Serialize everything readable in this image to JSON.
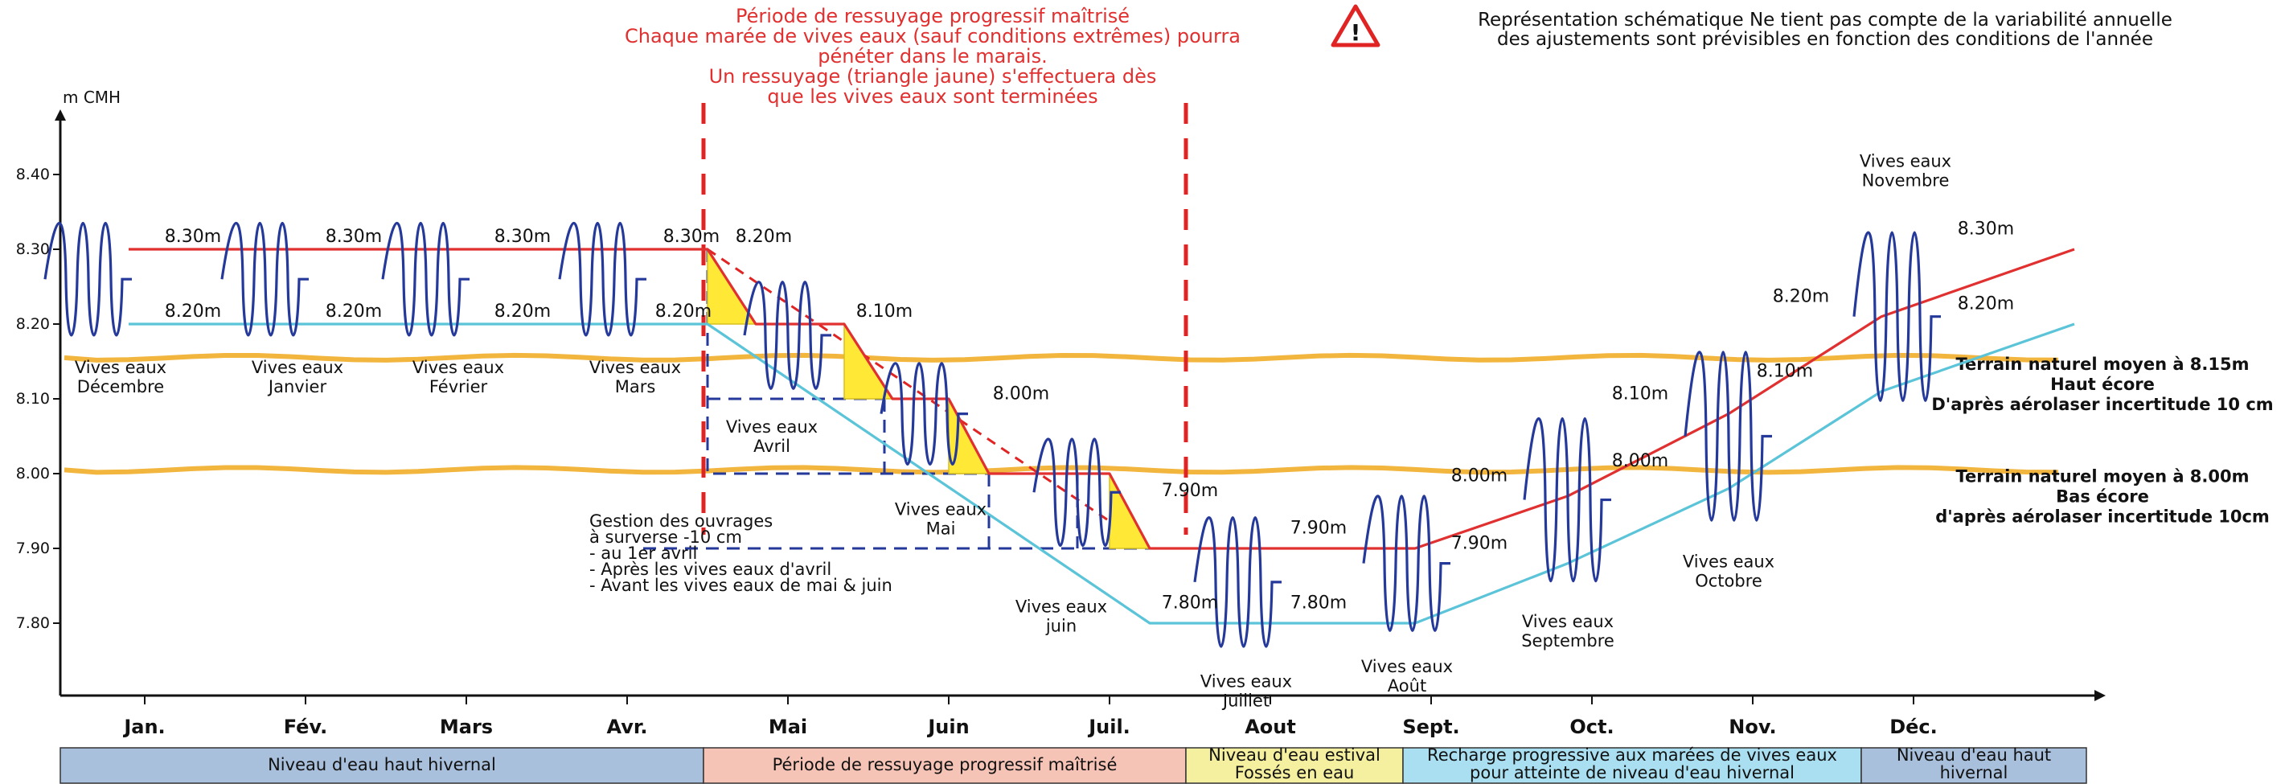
{
  "chart_data": {
    "type": "line",
    "ylabel": "m CMH",
    "ylim": [
      7.7,
      8.45
    ],
    "yticks": [
      7.8,
      7.9,
      8.0,
      8.1,
      8.2,
      8.3,
      8.4
    ],
    "ytick_labels": [
      "7.80",
      "7.90",
      "8.00",
      "8.10",
      "8.20",
      "8.30",
      "8.40"
    ],
    "months": [
      "Jan.",
      "Fév.",
      "Mars",
      "Avr.",
      "Mai",
      "Juin",
      "Juil.",
      "Aout",
      "Sept.",
      "Oct.",
      "Nov.",
      "Déc."
    ],
    "series": [
      {
        "name": "",
        "color": "#e03030",
        "points": [
          {
            "x": 0.4,
            "y": 8.3
          },
          {
            "x": 1.2,
            "y": 8.3
          },
          {
            "x": 2.2,
            "y": 8.3
          },
          {
            "x": 3.3,
            "y": 8.3
          },
          {
            "x": 4.0,
            "y": 8.3
          },
          {
            "x": 4.3,
            "y": 8.2
          },
          {
            "x": 4.85,
            "y": 8.2
          },
          {
            "x": 5.15,
            "y": 8.1
          },
          {
            "x": 5.5,
            "y": 8.1
          },
          {
            "x": 5.75,
            "y": 8.0
          },
          {
            "x": 6.5,
            "y": 8.0
          },
          {
            "x": 6.75,
            "y": 7.9
          },
          {
            "x": 7.3,
            "y": 7.9
          },
          {
            "x": 8.4,
            "y": 7.9
          },
          {
            "x": 9.35,
            "y": 7.97
          },
          {
            "x": 10.35,
            "y": 8.08
          },
          {
            "x": 11.3,
            "y": 8.21
          },
          {
            "x": 12.5,
            "y": 8.3
          }
        ]
      },
      {
        "name": "",
        "color": "#5bc4d8",
        "points": [
          {
            "x": 0.4,
            "y": 8.2
          },
          {
            "x": 1.2,
            "y": 8.2
          },
          {
            "x": 2.2,
            "y": 8.2
          },
          {
            "x": 3.3,
            "y": 8.2
          },
          {
            "x": 4.0,
            "y": 8.2
          },
          {
            "x": 6.75,
            "y": 7.8
          },
          {
            "x": 7.3,
            "y": 7.8
          },
          {
            "x": 8.4,
            "y": 7.8
          },
          {
            "x": 9.35,
            "y": 7.88
          },
          {
            "x": 10.35,
            "y": 7.98
          },
          {
            "x": 11.3,
            "y": 8.11
          },
          {
            "x": 12.5,
            "y": 8.2
          }
        ]
      }
    ],
    "level_labels": [
      {
        "text": "8.30m",
        "x": 0.8,
        "y": 8.3
      },
      {
        "text": "8.30m",
        "x": 1.8,
        "y": 8.3
      },
      {
        "text": "8.30m",
        "x": 2.85,
        "y": 8.3
      },
      {
        "text": "8.30m",
        "x": 3.9,
        "y": 8.3
      },
      {
        "text": "8.20m",
        "x": 0.8,
        "y": 8.2
      },
      {
        "text": "8.20m",
        "x": 1.8,
        "y": 8.2
      },
      {
        "text": "8.20m",
        "x": 2.85,
        "y": 8.2
      },
      {
        "text": "8.20m",
        "x": 3.85,
        "y": 8.2
      },
      {
        "text": "8.20m",
        "x": 4.35,
        "y": 8.3
      },
      {
        "text": "8.10m",
        "x": 5.1,
        "y": 8.2
      },
      {
        "text": "8.00m",
        "x": 5.95,
        "y": 8.09
      },
      {
        "text": "7.90m",
        "x": 7.0,
        "y": 7.96
      },
      {
        "text": "7.80m",
        "x": 7.0,
        "y": 7.81
      },
      {
        "text": "7.90m",
        "x": 7.8,
        "y": 7.91
      },
      {
        "text": "7.80m",
        "x": 7.8,
        "y": 7.81
      },
      {
        "text": "8.00m",
        "x": 8.8,
        "y": 7.98
      },
      {
        "text": "7.90m",
        "x": 8.8,
        "y": 7.89
      },
      {
        "text": "8.10m",
        "x": 9.8,
        "y": 8.09
      },
      {
        "text": "8.00m",
        "x": 9.8,
        "y": 8.0
      },
      {
        "text": "8.20m",
        "x": 10.8,
        "y": 8.22
      },
      {
        "text": "8.10m",
        "x": 10.7,
        "y": 8.12
      },
      {
        "text": "8.30m",
        "x": 11.95,
        "y": 8.31
      },
      {
        "text": "8.20m",
        "x": 11.95,
        "y": 8.21
      }
    ],
    "tides": [
      {
        "x": 0.15,
        "low": 8.16,
        "high": 8.36,
        "label": [
          "Vives eaux",
          "Décembre"
        ],
        "lx": 0.35,
        "ly": 8.14
      },
      {
        "x": 1.25,
        "low": 8.16,
        "high": 8.36,
        "label": [
          "Vives eaux",
          "Janvier"
        ],
        "lx": 1.45,
        "ly": 8.14
      },
      {
        "x": 2.25,
        "low": 8.16,
        "high": 8.36,
        "label": [
          "Vives eaux",
          "Février"
        ],
        "lx": 2.45,
        "ly": 8.14
      },
      {
        "x": 3.35,
        "low": 8.16,
        "high": 8.36,
        "label": [
          "Vives eaux",
          "Mars"
        ],
        "lx": 3.55,
        "ly": 8.14
      },
      {
        "x": 4.5,
        "low": 8.09,
        "high": 8.28,
        "label": [
          "Vives eaux",
          "Avril"
        ],
        "lx": 4.4,
        "ly": 8.06
      },
      {
        "x": 5.35,
        "low": 7.99,
        "high": 8.17,
        "label": [
          "Vives eaux",
          "Mai"
        ],
        "lx": 5.45,
        "ly": 7.95
      },
      {
        "x": 6.3,
        "low": 7.88,
        "high": 8.07,
        "label": [
          "Vives eaux",
          "juin"
        ],
        "lx": 6.2,
        "ly": 7.82
      },
      {
        "x": 7.3,
        "low": 7.74,
        "high": 7.97,
        "label": [
          "Vives eaux",
          "Juillet"
        ],
        "lx": 7.35,
        "ly": 7.72
      },
      {
        "x": 8.35,
        "low": 7.76,
        "high": 8.0,
        "label": [
          "Vives eaux",
          "Août"
        ],
        "lx": 8.35,
        "ly": 7.74
      },
      {
        "x": 9.35,
        "low": 7.82,
        "high": 8.11,
        "label": [
          "Vives eaux",
          "Septembre"
        ],
        "lx": 9.35,
        "ly": 7.8
      },
      {
        "x": 10.35,
        "low": 7.9,
        "high": 8.2,
        "label": [
          "Vives eaux",
          "Octobre"
        ],
        "lx": 10.35,
        "ly": 7.88
      },
      {
        "x": 11.4,
        "low": 8.06,
        "high": 8.36,
        "label": [
          "Vives eaux",
          "Novembre"
        ],
        "lx": 11.45,
        "ly": 8.41
      }
    ],
    "triangles": [
      {
        "x1": 4.0,
        "y1": 8.3,
        "x2": 4.3,
        "y2": 8.2
      },
      {
        "x1": 4.85,
        "y1": 8.2,
        "x2": 5.15,
        "y2": 8.1
      },
      {
        "x1": 5.5,
        "y1": 8.1,
        "x2": 5.75,
        "y2": 8.0
      },
      {
        "x1": 6.5,
        "y1": 8.0,
        "x2": 6.75,
        "y2": 7.9
      }
    ],
    "terrain_lines": [
      {
        "y": 8.155,
        "text": [
          "Terrain naturel moyen à 8.15m",
          "Haut écore",
          "D'après aérolaser incertitude 10 cm"
        ]
      },
      {
        "y": 8.005,
        "text": [
          "Terrain naturel moyen à 8.00m",
          "Bas écore",
          "d'après aérolaser incertitude 10cm"
        ]
      }
    ],
    "phase_bands": [
      {
        "x1": 0.0,
        "x2": 4.0,
        "color": "#a9c0dd",
        "label": [
          "Niveau d'eau haut hivernal"
        ]
      },
      {
        "x1": 4.0,
        "x2": 7.0,
        "color": "#f6c4b6",
        "label": [
          "Période de ressuyage progressif maîtrisé"
        ]
      },
      {
        "x1": 7.0,
        "x2": 8.35,
        "color": "#f5f0a0",
        "label": [
          "Niveau d'eau estival",
          "Fossés en eau"
        ]
      },
      {
        "x1": 8.35,
        "x2": 11.2,
        "color": "#a9dff0",
        "label": [
          "Recharge progressive aux marées de vives eaux",
          "pour atteinte de niveau d'eau hivernal"
        ]
      },
      {
        "x1": 11.2,
        "x2": 12.6,
        "color": "#a9c0dd",
        "label": [
          "Niveau d'eau haut",
          "hivernal"
        ]
      }
    ],
    "annotations": {
      "red_note": [
        "Période de ressuyage progressif maîtrisé",
        "Chaque marée de vives eaux (sauf conditions extrêmes) pourra",
        "pénéter dans le marais.",
        "Un ressuyage (triangle jaune) s'effectuera dès",
        "que les vives eaux sont terminées"
      ],
      "warning_note": [
        "Représentation schématique Ne tient pas compte de la variabilité annuelle",
        "des ajustements sont prévisibles en fonction des conditions de l'année"
      ],
      "gestion_note": [
        "Gestion des ouvrages",
        "à surverse -10 cm",
        "- au 1er avril",
        "- Après les vives eaux d'avril",
        "- Avant les vives eaux de mai & juin"
      ]
    }
  },
  "colors": {
    "red_line": "#e03030",
    "blue_line": "#5bc4d8",
    "tide_wave": "#24399a",
    "terrain_line": "#f0a81c",
    "triangle_fill": "#ffe936",
    "dashed_red": "#e02424",
    "dashed_navy": "#24399a"
  }
}
